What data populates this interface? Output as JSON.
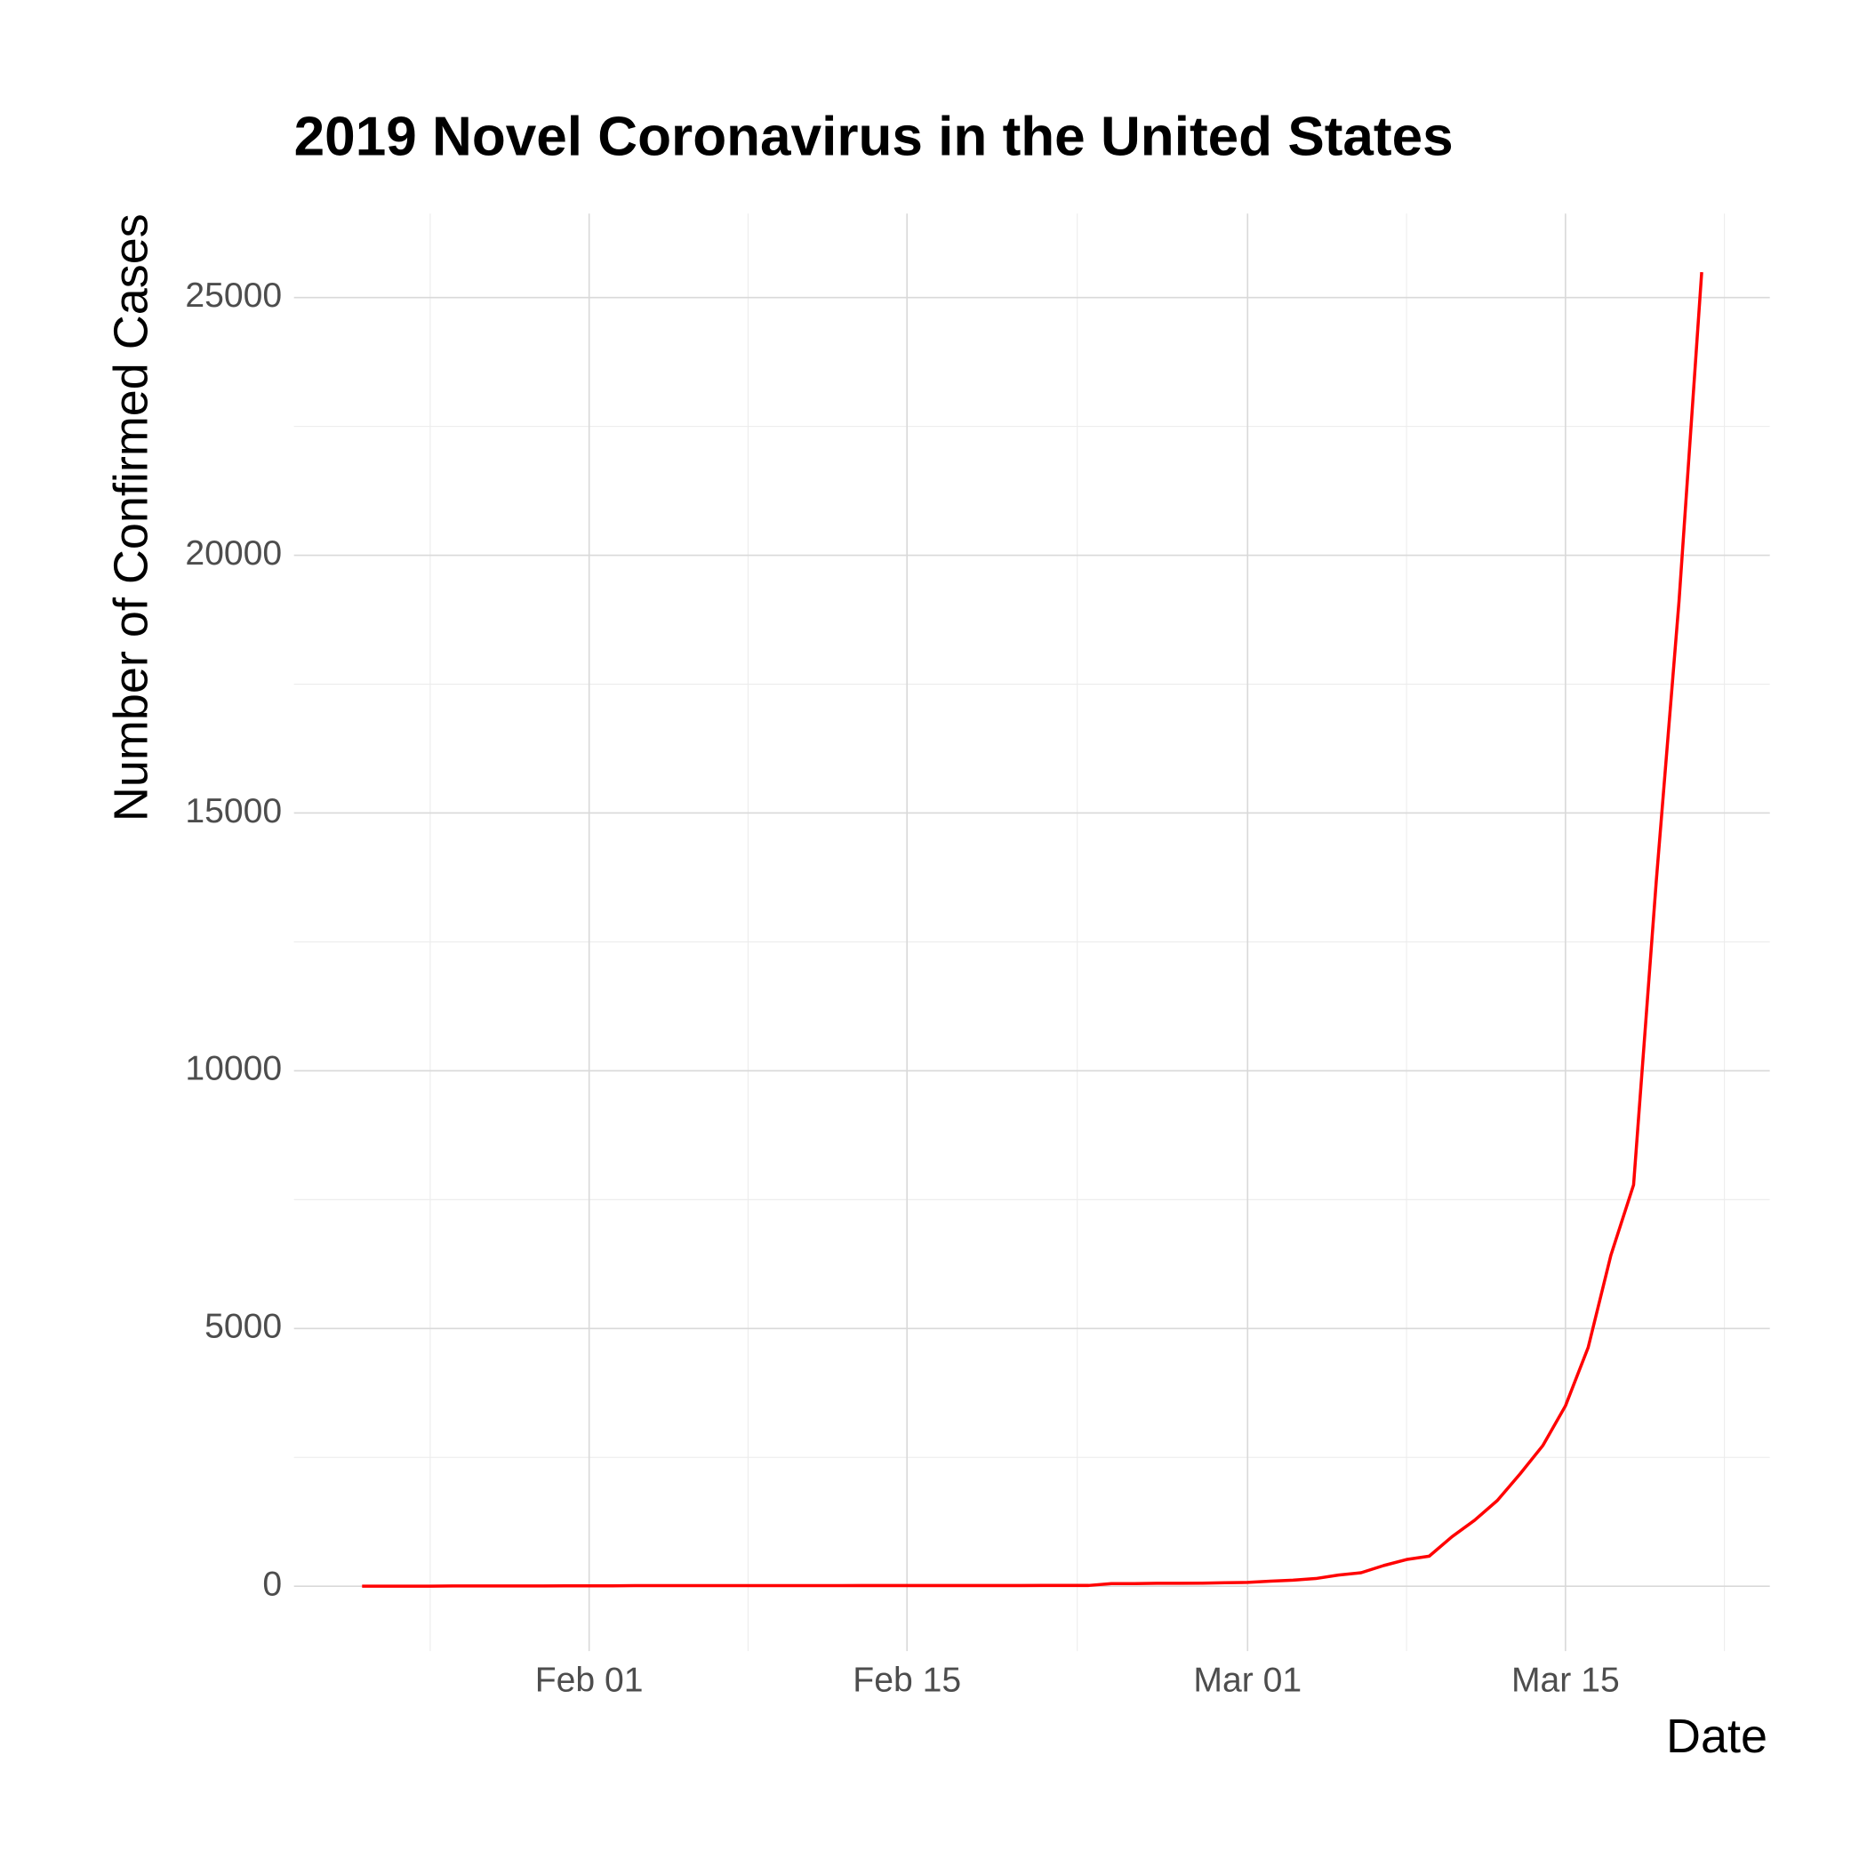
{
  "chart_data": {
    "type": "line",
    "title": "2019 Novel Coronavirus in the United States",
    "x_label": "Date",
    "y_label": "Number of Confirmed Cases",
    "x": [
      "Jan 22",
      "Jan 23",
      "Jan 24",
      "Jan 25",
      "Jan 26",
      "Jan 27",
      "Jan 28",
      "Jan 29",
      "Jan 30",
      "Jan 31",
      "Feb 01",
      "Feb 02",
      "Feb 03",
      "Feb 04",
      "Feb 05",
      "Feb 06",
      "Feb 07",
      "Feb 08",
      "Feb 09",
      "Feb 10",
      "Feb 11",
      "Feb 12",
      "Feb 13",
      "Feb 14",
      "Feb 15",
      "Feb 16",
      "Feb 17",
      "Feb 18",
      "Feb 19",
      "Feb 20",
      "Feb 21",
      "Feb 22",
      "Feb 23",
      "Feb 24",
      "Feb 25",
      "Feb 26",
      "Feb 27",
      "Feb 28",
      "Feb 29",
      "Mar 01",
      "Mar 02",
      "Mar 03",
      "Mar 04",
      "Mar 05",
      "Mar 06",
      "Mar 07",
      "Mar 08",
      "Mar 09",
      "Mar 10",
      "Mar 11",
      "Mar 12",
      "Mar 13",
      "Mar 14",
      "Mar 15",
      "Mar 16",
      "Mar 17",
      "Mar 18",
      "Mar 19",
      "Mar 20",
      "Mar 21"
    ],
    "series": [
      {
        "name": "Confirmed",
        "color": "#ff0000",
        "values": [
          1,
          1,
          2,
          2,
          5,
          5,
          5,
          5,
          5,
          7,
          8,
          8,
          11,
          11,
          11,
          11,
          11,
          11,
          11,
          11,
          12,
          12,
          13,
          13,
          13,
          13,
          13,
          13,
          13,
          13,
          15,
          15,
          15,
          51,
          51,
          57,
          58,
          60,
          68,
          74,
          98,
          118,
          149,
          217,
          262,
          402,
          518,
          583,
          959,
          1281,
          1663,
          2179,
          2727,
          3499,
          4632,
          6421,
          7786,
          13680,
          19101,
          25493
        ]
      }
    ],
    "xlim": [
      "Jan 19",
      "Mar 24"
    ],
    "xticks": [
      "Feb 01",
      "Feb 15",
      "Mar 01",
      "Mar 15"
    ],
    "ylim": [
      -1257,
      26629
    ],
    "yticks": [
      0,
      5000,
      10000,
      15000,
      20000,
      25000
    ],
    "grid": true
  }
}
